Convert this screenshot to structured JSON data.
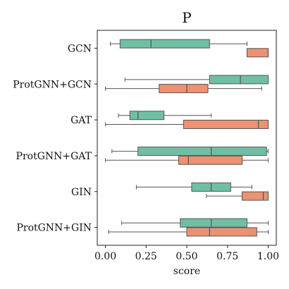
{
  "chart_data": {
    "type": "boxplot",
    "title": "P",
    "xlabel": "score",
    "ylabel": "",
    "xlim": [
      -0.05,
      1.05
    ],
    "x_ticks": [
      0.0,
      0.25,
      0.5,
      0.75,
      1.0
    ],
    "x_tick_labels": [
      "0.00",
      "0.25",
      "0.50",
      "0.75",
      "1.00"
    ],
    "grid": false,
    "legend": false,
    "categories": [
      "GCN",
      "ProtGNN+GCN",
      "GAT",
      "ProtGNN+GAT",
      "GIN",
      "ProtGNN+GIN"
    ],
    "series": [
      {
        "color": "#6FBFA3",
        "boxes": [
          {
            "whislo": 0.03,
            "q1": 0.09,
            "med": 0.28,
            "q3": 0.64,
            "whishi": 0.87
          },
          {
            "whislo": 0.12,
            "q1": 0.64,
            "med": 0.83,
            "q3": 1.0,
            "whishi": 1.0
          },
          {
            "whislo": 0.08,
            "q1": 0.15,
            "med": 0.2,
            "q3": 0.36,
            "whishi": 0.65
          },
          {
            "whislo": 0.04,
            "q1": 0.2,
            "med": 0.65,
            "q3": 0.99,
            "whishi": 1.0
          },
          {
            "whislo": 0.19,
            "q1": 0.53,
            "med": 0.65,
            "q3": 0.77,
            "whishi": 0.9
          },
          {
            "whislo": 0.1,
            "q1": 0.46,
            "med": 0.65,
            "q3": 0.87,
            "whishi": 1.0
          }
        ]
      },
      {
        "color": "#EA9272",
        "boxes": [
          {
            "whislo": 0.87,
            "q1": 0.87,
            "med": 1.0,
            "q3": 1.0,
            "whishi": 1.0
          },
          {
            "whislo": 0.0,
            "q1": 0.33,
            "med": 0.5,
            "q3": 0.63,
            "whishi": 0.96
          },
          {
            "whislo": 0.0,
            "q1": 0.48,
            "med": 0.94,
            "q3": 1.0,
            "whishi": 1.0
          },
          {
            "whislo": 0.0,
            "q1": 0.45,
            "med": 0.51,
            "q3": 0.84,
            "whishi": 1.0
          },
          {
            "whislo": 0.62,
            "q1": 0.84,
            "med": 0.97,
            "q3": 1.0,
            "whishi": 1.0
          },
          {
            "whislo": 0.02,
            "q1": 0.5,
            "med": 0.64,
            "q3": 0.93,
            "whishi": 1.0
          }
        ]
      }
    ]
  }
}
